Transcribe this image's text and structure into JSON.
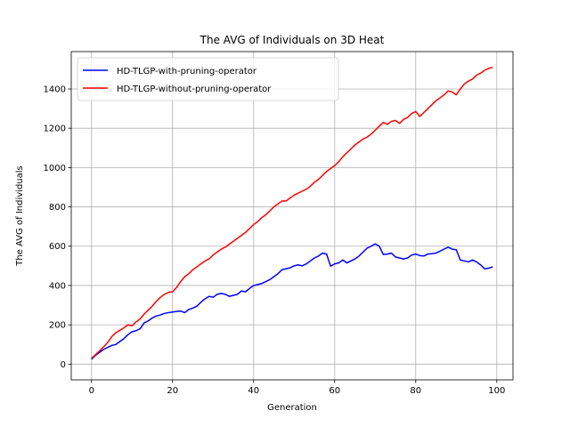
{
  "chart_data": {
    "type": "line",
    "title": "The AVG of Individuals on 3D Heat",
    "xlabel": "Generation",
    "ylabel": "The AVG of Individuals",
    "xlim": [
      -5,
      104
    ],
    "ylim": [
      -80,
      1590
    ],
    "xticks": [
      0,
      20,
      40,
      60,
      80,
      100
    ],
    "yticks": [
      0,
      200,
      400,
      600,
      800,
      1000,
      1200,
      1400
    ],
    "grid": true,
    "legend_position": "upper-left",
    "x": [
      0,
      1,
      2,
      3,
      4,
      5,
      6,
      7,
      8,
      9,
      10,
      11,
      12,
      13,
      14,
      15,
      16,
      17,
      18,
      19,
      20,
      21,
      22,
      23,
      24,
      25,
      26,
      27,
      28,
      29,
      30,
      31,
      32,
      33,
      34,
      35,
      36,
      37,
      38,
      39,
      40,
      41,
      42,
      43,
      44,
      45,
      46,
      47,
      48,
      49,
      50,
      51,
      52,
      53,
      54,
      55,
      56,
      57,
      58,
      59,
      60,
      61,
      62,
      63,
      64,
      65,
      66,
      67,
      68,
      69,
      70,
      71,
      72,
      73,
      74,
      75,
      76,
      77,
      78,
      79,
      80,
      81,
      82,
      83,
      84,
      85,
      86,
      87,
      88,
      89,
      90,
      91,
      92,
      93,
      94,
      95,
      96,
      97,
      98,
      99
    ],
    "series": [
      {
        "name": "HD-TLGP-with-pruning-operator",
        "color": "#0000ff",
        "values": [
          25,
          45,
          60,
          75,
          85,
          95,
          100,
          115,
          130,
          150,
          165,
          170,
          180,
          210,
          220,
          235,
          245,
          250,
          258,
          262,
          265,
          268,
          270,
          262,
          278,
          285,
          295,
          315,
          332,
          345,
          340,
          355,
          360,
          355,
          345,
          350,
          355,
          372,
          368,
          385,
          400,
          405,
          410,
          420,
          430,
          445,
          460,
          480,
          485,
          490,
          500,
          505,
          500,
          510,
          525,
          540,
          550,
          565,
          560,
          498,
          510,
          515,
          530,
          515,
          525,
          535,
          550,
          570,
          590,
          600,
          612,
          600,
          558,
          560,
          565,
          545,
          540,
          535,
          540,
          555,
          560,
          552,
          550,
          560,
          562,
          565,
          575,
          585,
          595,
          585,
          582,
          530,
          525,
          520,
          530,
          520,
          505,
          485,
          488,
          495
        ]
      },
      {
        "name": "HD-TLGP-without-pruning-operator",
        "color": "#ff0000",
        "values": [
          30,
          48,
          68,
          88,
          110,
          140,
          160,
          172,
          185,
          200,
          195,
          215,
          230,
          255,
          275,
          295,
          320,
          340,
          355,
          365,
          368,
          390,
          420,
          445,
          460,
          480,
          495,
          510,
          525,
          535,
          555,
          570,
          585,
          595,
          610,
          625,
          640,
          655,
          670,
          690,
          710,
          725,
          745,
          760,
          780,
          800,
          815,
          830,
          830,
          845,
          860,
          870,
          880,
          890,
          905,
          925,
          940,
          960,
          980,
          995,
          1010,
          1030,
          1055,
          1075,
          1095,
          1115,
          1130,
          1145,
          1155,
          1170,
          1190,
          1210,
          1230,
          1220,
          1235,
          1240,
          1225,
          1245,
          1255,
          1275,
          1285,
          1260,
          1280,
          1300,
          1320,
          1340,
          1355,
          1370,
          1390,
          1385,
          1370,
          1400,
          1425,
          1440,
          1450,
          1470,
          1480,
          1495,
          1505,
          1510
        ]
      }
    ]
  }
}
